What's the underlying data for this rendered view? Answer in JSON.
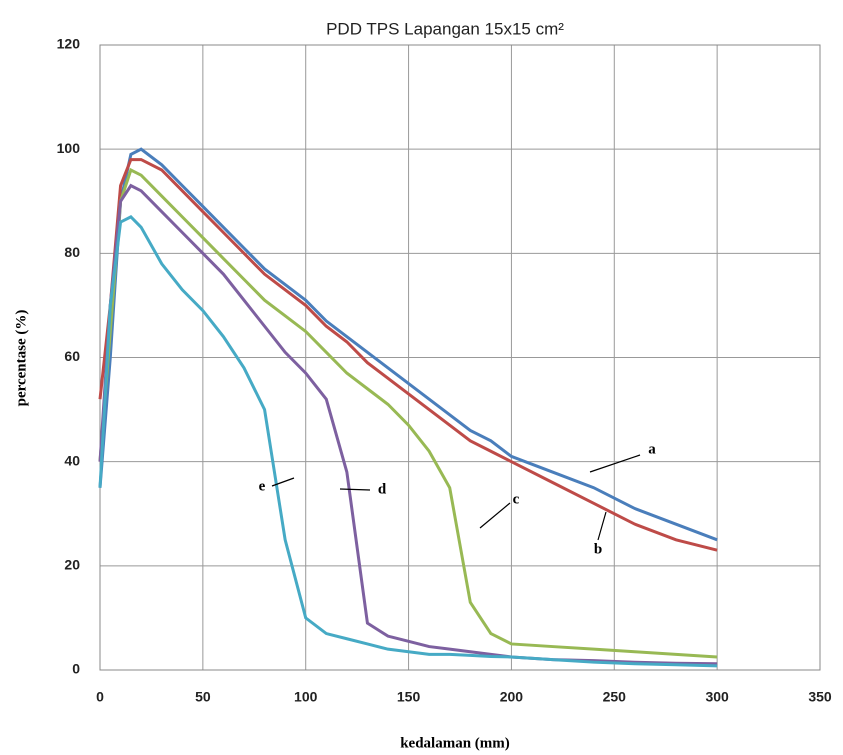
{
  "chart_data": {
    "type": "line",
    "title": "PDD TPS Lapangan 15x15 cm²",
    "x_label": "kedalaman (mm)",
    "y_label": "percentase (%)",
    "xlim": [
      0,
      350
    ],
    "xticks": [
      0,
      50,
      100,
      150,
      200,
      250,
      300,
      350
    ],
    "ylim": [
      0,
      120
    ],
    "yticks": [
      0,
      20,
      40,
      60,
      80,
      100,
      120
    ],
    "grid": true,
    "x": [
      0,
      5,
      10,
      15,
      20,
      30,
      40,
      50,
      60,
      70,
      80,
      90,
      100,
      110,
      120,
      130,
      140,
      150,
      160,
      170,
      180,
      190,
      200,
      220,
      240,
      260,
      280,
      300
    ],
    "series": [
      {
        "name": "a",
        "color": "#4a7ebb",
        "values": [
          35,
          60,
          90,
          99,
          100,
          97,
          93,
          89,
          85,
          81,
          77,
          74,
          71,
          67,
          64,
          61,
          58,
          55,
          52,
          49,
          46,
          44,
          41,
          38,
          35,
          31,
          28,
          25
        ]
      },
      {
        "name": "b",
        "color": "#be4b48",
        "values": [
          52,
          70,
          93,
          98,
          98,
          96,
          92,
          88,
          84,
          80,
          76,
          73,
          70,
          66,
          63,
          59,
          56,
          53,
          50,
          47,
          44,
          42,
          40,
          36,
          32,
          28,
          25,
          23
        ]
      },
      {
        "name": "c",
        "color": "#98b954",
        "values": [
          40,
          65,
          90,
          96,
          95,
          91,
          87,
          83,
          79,
          75,
          71,
          68,
          65,
          61,
          57,
          54,
          51,
          47,
          42,
          35,
          13,
          7,
          5,
          4.5,
          4,
          3.5,
          3,
          2.5
        ]
      },
      {
        "name": "d",
        "color": "#7d60a0",
        "values": [
          40,
          70,
          90,
          93,
          92,
          88,
          84,
          80,
          76,
          71,
          66,
          61,
          57,
          52,
          38,
          9,
          6.5,
          5.5,
          4.5,
          4,
          3.5,
          3,
          2.5,
          2,
          1.8,
          1.5,
          1.3,
          1.2
        ]
      },
      {
        "name": "e",
        "color": "#46aac5",
        "values": [
          35,
          70,
          86,
          87,
          85,
          78,
          73,
          69,
          64,
          58,
          50,
          25,
          10,
          7,
          6,
          5,
          4,
          3.5,
          3,
          3,
          2.8,
          2.6,
          2.5,
          2,
          1.5,
          1.2,
          1,
          0.8
        ]
      }
    ]
  }
}
